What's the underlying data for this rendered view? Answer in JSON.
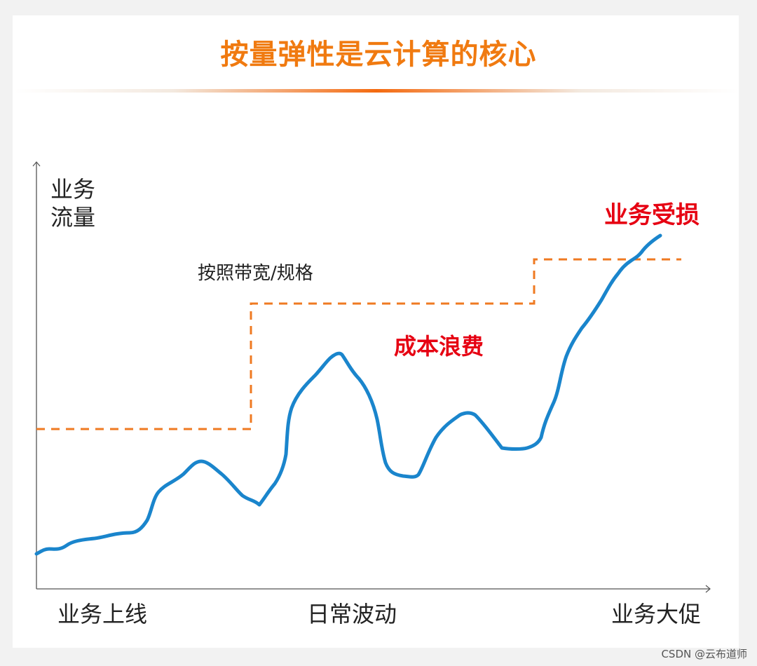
{
  "title": "按量弹性是云计算的核心",
  "y_axis_label": "业务流量",
  "x_axis_stages": [
    "业务上线",
    "日常波动",
    "业务大促"
  ],
  "annotations": {
    "capacity_label": "按照带宽/规格",
    "over_provision": "成本浪费",
    "under_provision": "业务受损"
  },
  "watermark": "CSDN @云布道师",
  "colors": {
    "title": "#f07a10",
    "traffic_line": "#1a85cc",
    "capacity_line": "#ef7a22",
    "alert_text": "#e60012"
  }
}
